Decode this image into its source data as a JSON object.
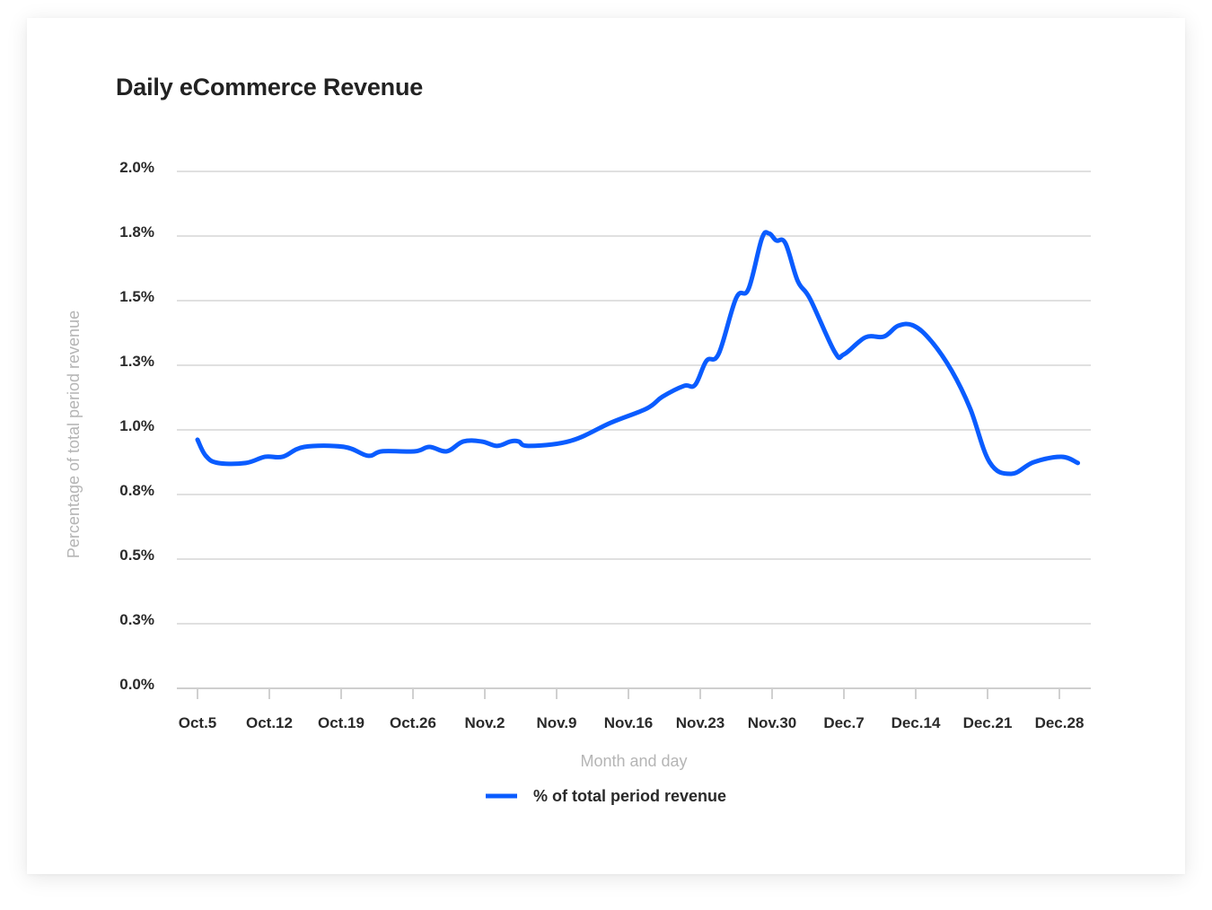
{
  "chart_data": {
    "type": "line",
    "title": "Daily eCommerce Revenue",
    "xlabel": "Month and day",
    "ylabel": "Percentage of total period revenue",
    "ylim": [
      0,
      2.0
    ],
    "y_ticks": [
      0.0,
      0.25,
      0.5,
      0.75,
      1.0,
      1.25,
      1.5,
      1.75,
      2.0
    ],
    "y_tick_labels": [
      "0.0%",
      "0.3%",
      "0.5%",
      "0.8%",
      "1.0%",
      "1.3%",
      "1.5%",
      "1.8%",
      "2.0%"
    ],
    "x_ticks_day_offset": [
      0,
      7,
      14,
      21,
      28,
      35,
      42,
      49,
      56,
      63,
      70,
      77,
      84
    ],
    "x_tick_labels": [
      "Oct.5",
      "Oct.12",
      "Oct.19",
      "Oct.26",
      "Nov.2",
      "Nov.9",
      "Nov.16",
      "Nov.23",
      "Nov.30",
      "Dec.7",
      "Dec.14",
      "Dec.21",
      "Dec.28"
    ],
    "xlim_day_offset": [
      -2,
      87
    ],
    "grid": true,
    "legend_position": "bottom-center",
    "series": [
      {
        "name": "% of total period revenue",
        "color": "#0a5cff",
        "x_day_offset": [
          0,
          0.8,
          2,
          4.7,
          6.6,
          8.3,
          10.4,
          14.3,
          16.6,
          18,
          21.2,
          22.6,
          24.3,
          25.9,
          27.7,
          29.2,
          30.5,
          31.3,
          32.3,
          36.4,
          40.3,
          43.8,
          45.3,
          47.4,
          48.5,
          49.6,
          50.8,
          52.5,
          53.7,
          55,
          55.7,
          56.4,
          57.3,
          58.5,
          59.7,
          62.1,
          63,
          65.1,
          66.9,
          68.3,
          69.8,
          71.5,
          73.5,
          75.3,
          77.2,
          79.3,
          81.5,
          84.2,
          85.8
        ],
        "values": [
          0.962,
          0.9,
          0.872,
          0.872,
          0.896,
          0.896,
          0.934,
          0.934,
          0.9,
          0.917,
          0.917,
          0.934,
          0.917,
          0.955,
          0.955,
          0.938,
          0.955,
          0.955,
          0.938,
          0.958,
          1.028,
          1.083,
          1.128,
          1.17,
          1.174,
          1.267,
          1.295,
          1.51,
          1.545,
          1.74,
          1.76,
          1.733,
          1.722,
          1.576,
          1.507,
          1.302,
          1.292,
          1.358,
          1.361,
          1.403,
          1.403,
          1.344,
          1.229,
          1.083,
          0.875,
          0.83,
          0.875,
          0.896,
          0.872
        ]
      }
    ]
  }
}
